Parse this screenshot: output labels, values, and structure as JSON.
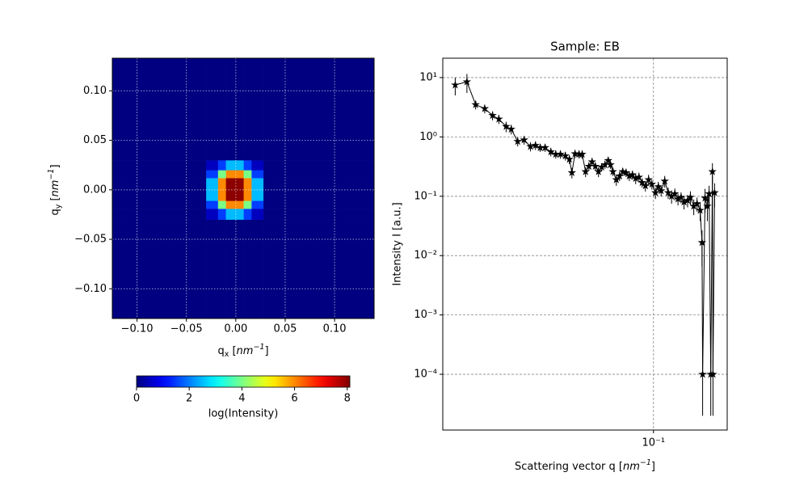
{
  "chart_data": [
    {
      "type": "heatmap",
      "xlabel": [
        "q",
        "x",
        " [",
        "nm",
        "−1",
        "]"
      ],
      "ylabel": [
        "q",
        "y",
        " [",
        "nm",
        "−1",
        "]"
      ],
      "xlim": [
        -0.125,
        0.14
      ],
      "ylim": [
        -0.13,
        0.133
      ],
      "xticks": [
        {
          "value": -0.1,
          "label": "−0.10"
        },
        {
          "value": -0.05,
          "label": "−0.05"
        },
        {
          "value": 0,
          "label": "0.00"
        },
        0.05,
        {
          "value": 0.1,
          "label": "0.10"
        }
      ],
      "yticks": [
        {
          "value": -0.1,
          "label": "−0.10"
        },
        {
          "value": -0.05,
          "label": "−0.05"
        },
        {
          "value": 0,
          "label": "0.00"
        },
        0.05,
        {
          "value": 0.1,
          "label": "0.10"
        }
      ],
      "grid": true,
      "x_edges": [
        -0.125,
        -0.03,
        -0.018,
        -0.01,
        0.008,
        0.016,
        0.028,
        0.14
      ],
      "y_edges": [
        -0.13,
        -0.03,
        -0.019,
        -0.011,
        0.012,
        0.02,
        0.03,
        0.133
      ],
      "z": [
        [
          0,
          0,
          0,
          0,
          0,
          0,
          0
        ],
        [
          0,
          0.5,
          1.5,
          2.5,
          1.5,
          0.5,
          0
        ],
        [
          0,
          1.5,
          4,
          6,
          4,
          1.5,
          0
        ],
        [
          0,
          2.5,
          6,
          8,
          6,
          2.5,
          0
        ],
        [
          0,
          1.5,
          4,
          6,
          4,
          1.5,
          0
        ],
        [
          0,
          0.5,
          1.5,
          2.5,
          1.5,
          0.5,
          0
        ],
        [
          0,
          0,
          0,
          0,
          0,
          0,
          0
        ]
      ],
      "colormap": "jet",
      "clim": [
        0,
        8.1
      ],
      "colorbar_ticks": [
        0,
        2,
        4,
        6,
        8
      ],
      "colorbar_label": "log(Intensity)"
    },
    {
      "type": "errorline",
      "title": "Sample: EB",
      "xlabel": [
        "Scattering vector q [",
        "nm",
        "−1",
        "]"
      ],
      "ylabel": "Intensity I [a.u.]",
      "log_x": true,
      "log_y": true,
      "grid": true,
      "color": "#000000",
      "xlim": [
        0.012,
        0.21
      ],
      "ylim": [
        1.15e-05,
        21.2
      ],
      "xticks": [
        {
          "value": 0.1,
          "label": "10⁻¹"
        }
      ],
      "yticks": [
        {
          "value": 0.0001,
          "label": "10⁻⁴"
        },
        {
          "value": 0.001,
          "label": "10⁻³"
        },
        {
          "value": 0.01,
          "label": "10⁻²"
        },
        {
          "value": 0.1,
          "label": "10⁻¹"
        },
        {
          "value": 1,
          "label": "10⁰"
        },
        {
          "value": 10,
          "label": "10¹"
        }
      ],
      "x": [
        0.0136,
        0.0153,
        0.0167,
        0.0183,
        0.0198,
        0.0211,
        0.0227,
        0.0239,
        0.0255,
        0.0272,
        0.029,
        0.0305,
        0.032,
        0.0336,
        0.0356,
        0.0374,
        0.0392,
        0.0412,
        0.0429,
        0.044,
        0.0454,
        0.0473,
        0.0488,
        0.0505,
        0.0522,
        0.0539,
        0.0557,
        0.0575,
        0.0594,
        0.0614,
        0.0634,
        0.0649,
        0.0665,
        0.0688,
        0.0711,
        0.0734,
        0.0759,
        0.0784,
        0.0809,
        0.0836,
        0.0864,
        0.0892,
        0.0922,
        0.0952,
        0.0984,
        0.102,
        0.105,
        0.108,
        0.112,
        0.116,
        0.12,
        0.124,
        0.128,
        0.132,
        0.136,
        0.141,
        0.145,
        0.15,
        0.155,
        0.16,
        0.163,
        0.164,
        0.168,
        0.172,
        0.175,
        0.178,
        0.181,
        0.182,
        0.185
      ],
      "values": [
        7.5,
        8.5,
        3.5,
        3.0,
        2.3,
        2.0,
        1.5,
        1.35,
        0.84,
        0.89,
        0.69,
        0.72,
        0.66,
        0.66,
        0.56,
        0.51,
        0.51,
        0.48,
        0.42,
        0.25,
        0.52,
        0.51,
        0.51,
        0.26,
        0.32,
        0.38,
        0.32,
        0.26,
        0.31,
        0.34,
        0.4,
        0.34,
        0.26,
        0.19,
        0.22,
        0.26,
        0.25,
        0.22,
        0.23,
        0.2,
        0.21,
        0.17,
        0.15,
        0.19,
        0.16,
        0.115,
        0.145,
        0.124,
        0.18,
        0.115,
        0.1,
        0.11,
        0.09,
        0.096,
        0.08,
        0.085,
        0.096,
        0.068,
        0.075,
        0.058,
        0.0166,
        0.0001,
        0.093,
        0.068,
        0.11,
        0.0001,
        0.26,
        0.0001,
        0.115
      ],
      "errors": [
        2.5,
        3,
        0.6,
        0.5,
        0.4,
        0.35,
        0.3,
        0.25,
        0.15,
        0.15,
        0.12,
        0.12,
        0.1,
        0.1,
        0.09,
        0.08,
        0.08,
        0.08,
        0.07,
        0.05,
        0.08,
        0.08,
        0.08,
        0.05,
        0.05,
        0.06,
        0.05,
        0.05,
        0.05,
        0.05,
        0.06,
        0.05,
        0.04,
        0.04,
        0.04,
        0.04,
        0.04,
        0.04,
        0.04,
        0.04,
        0.04,
        0.03,
        0.03,
        0.04,
        0.03,
        0.025,
        0.03,
        0.025,
        0.04,
        0.025,
        0.025,
        0.025,
        0.02,
        0.02,
        0.02,
        0.02,
        0.025,
        0.02,
        0.02,
        0.02,
        0.01,
        8e-05,
        0.04,
        0.03,
        0.04,
        8e-05,
        0.1,
        8e-05,
        0.05
      ]
    }
  ]
}
